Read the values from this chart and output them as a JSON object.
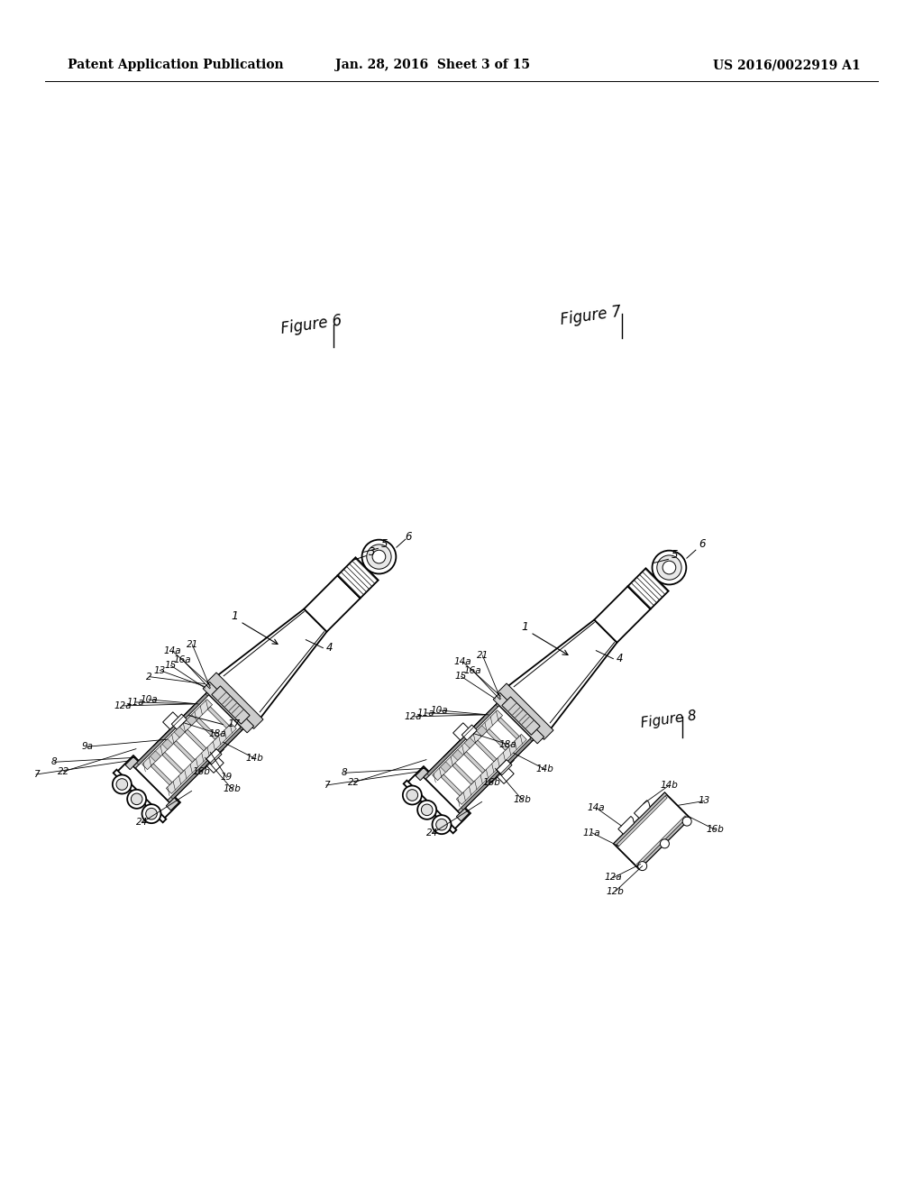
{
  "background_color": "#ffffff",
  "header_left": "Patent Application Publication",
  "header_center": "Jan. 28, 2016  Sheet 3 of 15",
  "header_right": "US 2016/0022919 A1",
  "fig_width": 10.24,
  "fig_height": 13.2,
  "dpi": 100,
  "fig6_label": "Figure 6",
  "fig7_label": "Figure 7",
  "fig8_label": "Figure 8",
  "line_color": "#1a1a1a",
  "lw_main": 1.3,
  "lw_thin": 0.7,
  "lw_hair": 0.4
}
